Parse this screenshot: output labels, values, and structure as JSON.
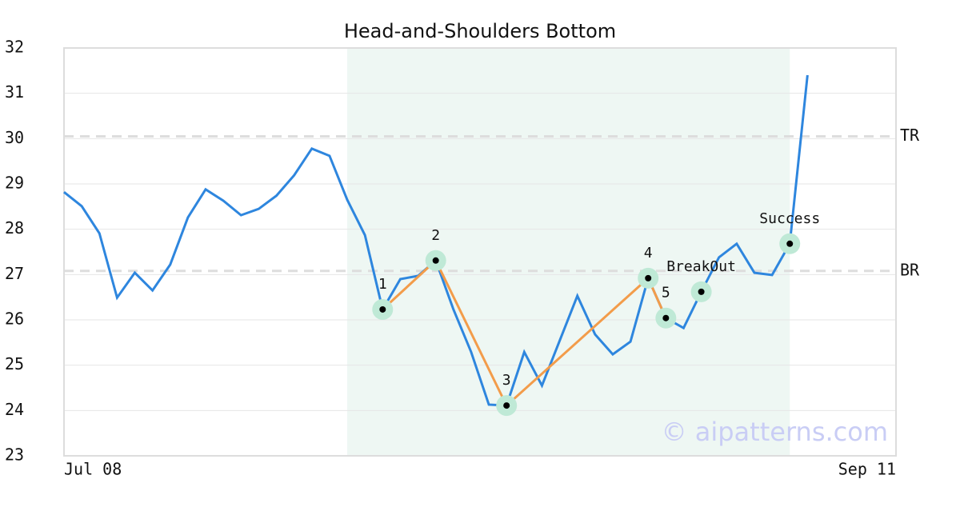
{
  "chart_data": {
    "type": "line",
    "title": "Head-and-Shoulders Bottom",
    "x": [
      0,
      1,
      2,
      3,
      4,
      5,
      6,
      7,
      8,
      9,
      10,
      11,
      12,
      13,
      14,
      15,
      16,
      17,
      18,
      19,
      20,
      21,
      22,
      23,
      24,
      25,
      26,
      27,
      28,
      29,
      30,
      31,
      32,
      33,
      34,
      35,
      36,
      37,
      38,
      39,
      40,
      41,
      42
    ],
    "series": [
      {
        "color": "#2e86de",
        "values": [
          28.82,
          28.51,
          27.91,
          26.49,
          27.04,
          26.65,
          27.22,
          28.26,
          28.88,
          28.63,
          28.31,
          28.45,
          28.74,
          29.19,
          29.78,
          29.62,
          28.65,
          27.87,
          26.23,
          26.9,
          26.97,
          27.31,
          26.23,
          25.29,
          24.13,
          24.11,
          25.29,
          24.55,
          25.54,
          26.53,
          25.68,
          25.24,
          25.52,
          26.92,
          26.04,
          25.82,
          26.62,
          27.38,
          27.68,
          27.04,
          26.99,
          27.68,
          31.4
        ]
      }
    ],
    "xlim": [
      0,
      47
    ],
    "xticks": [
      {
        "value": 0,
        "label": "Jul 08"
      },
      {
        "value": 47,
        "label": "Sep 11"
      }
    ],
    "ylim": [
      23,
      32
    ],
    "yticks": [
      23,
      24,
      25,
      26,
      27,
      28,
      29,
      30,
      31,
      32
    ],
    "grid": true,
    "pattern_range": [
      16,
      41
    ],
    "pattern_color": "#f39c4a",
    "pattern_points": [
      {
        "label": "1",
        "index": 18
      },
      {
        "label": "2",
        "index": 21
      },
      {
        "label": "3",
        "index": 25
      },
      {
        "label": "4",
        "index": 33
      },
      {
        "label": "5",
        "index": 34
      }
    ],
    "events": [
      {
        "label": "BreakOut",
        "index": 36
      },
      {
        "label": "Success",
        "index": 41
      }
    ],
    "levels": [
      {
        "label": "TR",
        "value": 30.05
      },
      {
        "label": "BR",
        "value": 27.08
      }
    ],
    "watermark": "© aipatterns.com"
  }
}
